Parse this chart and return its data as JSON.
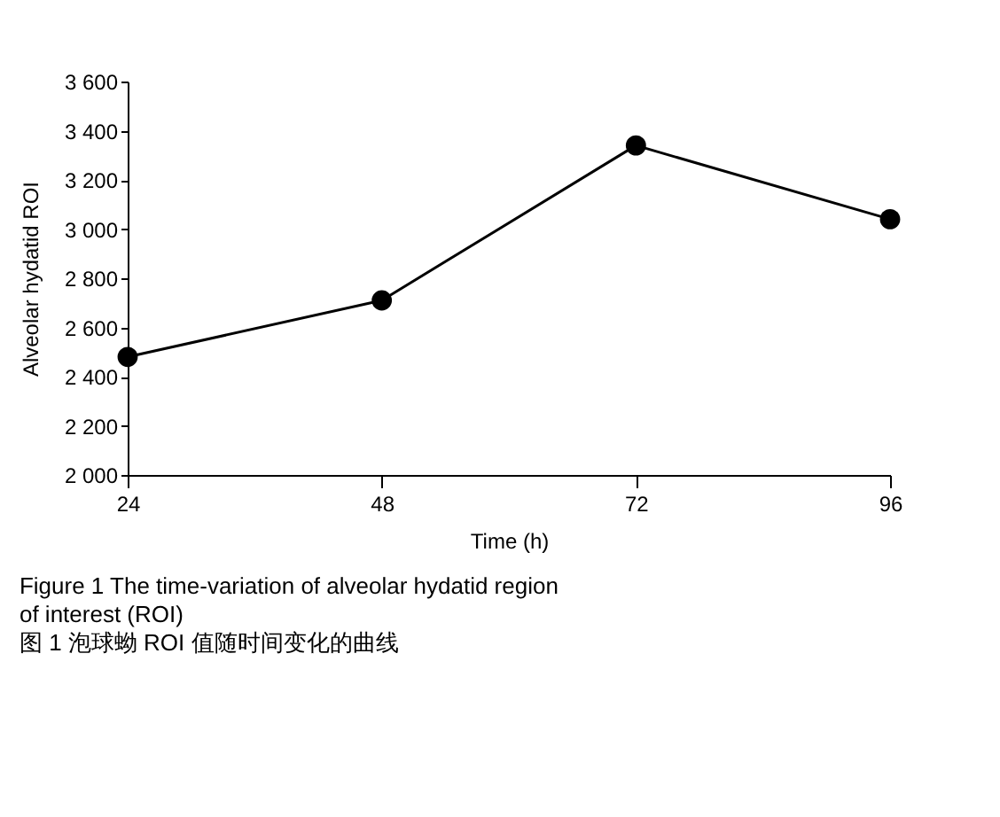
{
  "chart_data": {
    "type": "line",
    "xlabel": "Time (h)",
    "ylabel": "Alveolar hydatid ROI",
    "x": [
      24,
      48,
      72,
      96
    ],
    "series": [
      {
        "color": "#000000",
        "values": [
          2480,
          2710,
          3340,
          3040
        ]
      }
    ],
    "xlim": [
      24,
      96
    ],
    "xticks": [
      24,
      48,
      72,
      96
    ],
    "ylim": [
      2000,
      3600
    ],
    "yticks": [
      {
        "value": 2000,
        "label": "2 000"
      },
      {
        "value": 2200,
        "label": "2 200"
      },
      {
        "value": 2400,
        "label": "2 400"
      },
      {
        "value": 2600,
        "label": "2 600"
      },
      {
        "value": 2800,
        "label": "2 800"
      },
      {
        "value": 3000,
        "label": "3 000"
      },
      {
        "value": 3200,
        "label": "3 200"
      },
      {
        "value": 3400,
        "label": "3 400"
      },
      {
        "value": 3600,
        "label": "3 600"
      }
    ],
    "marker": "circle",
    "line_style": "solid",
    "grid": false,
    "annotations": [
      "Figure 1    The time-variation of alveolar hydatid region of interest (ROI)",
      "图 1    泡球蚴 ROI 值随时间变化的曲线"
    ]
  }
}
